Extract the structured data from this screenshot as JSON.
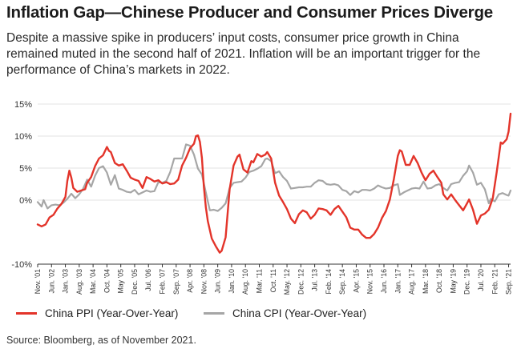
{
  "header": {
    "title": "Inflation Gap—Chinese Producer and Consumer Prices Diverge",
    "subtitle": "Despite a massive spike in producers’ input costs, consumer price growth in China remained muted in the second half of 2021. Inflation will be an important trigger for the performance of China’s markets in 2022."
  },
  "footer": {
    "source": "Source: Bloomberg, as of November 2021."
  },
  "colors": {
    "ppi": "#e3342a",
    "cpi": "#a6a6a6",
    "grid": "#e3e3e3",
    "axis": "#333333"
  },
  "chart_data": {
    "type": "line",
    "title": "",
    "xlabel": "",
    "ylabel": "",
    "ylim": [
      -10,
      15
    ],
    "xlim": [
      "Nov. '01",
      "Oct. '21"
    ],
    "grid": true,
    "legend_position": "bottom",
    "y_ticks": [
      "15%",
      "10%",
      "5%",
      "0%",
      "-10%"
    ],
    "x_ticks": [
      "Nov. '01",
      "Jun. '02",
      "Jan. '03",
      "Aug. '03",
      "Mar. '04",
      "Oct. '04",
      "May '05",
      "Dec. '05",
      "Jul. '06",
      "Feb. '07",
      "Sep. '07",
      "Apr. '08",
      "Nov. '08",
      "Jun. '09",
      "Jan. '10",
      "Aug. '10",
      "Mar. '11",
      "Oct. '11",
      "May. '12",
      "Dec. '12",
      "Jul. '13",
      "Feb. '14",
      "Sep. '14",
      "Apr. '15",
      "Nov. '15",
      "Jun. '16",
      "Jan. '17",
      "Aug. '17",
      "Mar. '18",
      "Oct. '18",
      "May '19",
      "Dec. '19",
      "Jul. '20",
      "Feb. '21",
      "Sep. '21"
    ],
    "series": [
      {
        "name": "China PPI (Year-Over-Year)",
        "color": "#e3342a",
        "points": [
          [
            "2001-11",
            -3.8
          ],
          [
            "2002-01",
            -4.1
          ],
          [
            "2002-03",
            -3.8
          ],
          [
            "2002-05",
            -2.7
          ],
          [
            "2002-07",
            -2.3
          ],
          [
            "2002-09",
            -1.3
          ],
          [
            "2002-11",
            -0.6
          ],
          [
            "2003-01",
            0.5
          ],
          [
            "2003-02",
            3.0
          ],
          [
            "2003-03",
            4.6
          ],
          [
            "2003-04",
            3.5
          ],
          [
            "2003-05",
            1.9
          ],
          [
            "2003-07",
            1.3
          ],
          [
            "2003-09",
            1.5
          ],
          [
            "2003-11",
            1.7
          ],
          [
            "2003-12",
            2.7
          ],
          [
            "2004-02",
            3.6
          ],
          [
            "2004-04",
            5.3
          ],
          [
            "2004-06",
            6.5
          ],
          [
            "2004-08",
            7.0
          ],
          [
            "2004-10",
            8.3
          ],
          [
            "2004-11",
            7.7
          ],
          [
            "2004-12",
            7.5
          ],
          [
            "2005-02",
            5.8
          ],
          [
            "2005-04",
            5.4
          ],
          [
            "2005-06",
            5.6
          ],
          [
            "2005-08",
            4.6
          ],
          [
            "2005-10",
            3.5
          ],
          [
            "2005-12",
            3.2
          ],
          [
            "2006-02",
            3.0
          ],
          [
            "2006-04",
            1.9
          ],
          [
            "2006-06",
            3.6
          ],
          [
            "2006-08",
            3.3
          ],
          [
            "2006-10",
            2.9
          ],
          [
            "2006-12",
            3.1
          ],
          [
            "2007-02",
            2.6
          ],
          [
            "2007-04",
            2.8
          ],
          [
            "2007-06",
            2.5
          ],
          [
            "2007-08",
            2.6
          ],
          [
            "2007-10",
            3.2
          ],
          [
            "2007-12",
            5.4
          ],
          [
            "2008-02",
            6.6
          ],
          [
            "2008-04",
            8.1
          ],
          [
            "2008-06",
            8.8
          ],
          [
            "2008-07",
            10.0
          ],
          [
            "2008-08",
            10.1
          ],
          [
            "2008-09",
            9.1
          ],
          [
            "2008-10",
            6.6
          ],
          [
            "2008-11",
            2.0
          ],
          [
            "2008-12",
            -1.1
          ],
          [
            "2009-01",
            -3.3
          ],
          [
            "2009-03",
            -6.0
          ],
          [
            "2009-05",
            -7.2
          ],
          [
            "2009-07",
            -8.2
          ],
          [
            "2009-08",
            -7.9
          ],
          [
            "2009-10",
            -5.8
          ],
          [
            "2009-12",
            1.7
          ],
          [
            "2010-02",
            5.4
          ],
          [
            "2010-04",
            6.8
          ],
          [
            "2010-05",
            7.1
          ],
          [
            "2010-07",
            4.8
          ],
          [
            "2010-09",
            4.3
          ],
          [
            "2010-11",
            6.1
          ],
          [
            "2010-12",
            5.9
          ],
          [
            "2011-02",
            7.2
          ],
          [
            "2011-04",
            6.8
          ],
          [
            "2011-06",
            7.1
          ],
          [
            "2011-07",
            7.5
          ],
          [
            "2011-09",
            6.5
          ],
          [
            "2011-11",
            2.7
          ],
          [
            "2012-01",
            0.7
          ],
          [
            "2012-03",
            -0.3
          ],
          [
            "2012-05",
            -1.4
          ],
          [
            "2012-07",
            -2.9
          ],
          [
            "2012-09",
            -3.6
          ],
          [
            "2012-11",
            -2.2
          ],
          [
            "2013-01",
            -1.6
          ],
          [
            "2013-03",
            -1.9
          ],
          [
            "2013-05",
            -2.9
          ],
          [
            "2013-07",
            -2.3
          ],
          [
            "2013-09",
            -1.3
          ],
          [
            "2013-11",
            -1.4
          ],
          [
            "2014-01",
            -1.6
          ],
          [
            "2014-03",
            -2.3
          ],
          [
            "2014-05",
            -1.4
          ],
          [
            "2014-07",
            -0.9
          ],
          [
            "2014-09",
            -1.8
          ],
          [
            "2014-11",
            -2.7
          ],
          [
            "2015-01",
            -4.3
          ],
          [
            "2015-03",
            -4.6
          ],
          [
            "2015-05",
            -4.6
          ],
          [
            "2015-07",
            -5.4
          ],
          [
            "2015-09",
            -5.9
          ],
          [
            "2015-11",
            -5.9
          ],
          [
            "2016-01",
            -5.3
          ],
          [
            "2016-03",
            -4.3
          ],
          [
            "2016-05",
            -2.8
          ],
          [
            "2016-07",
            -1.7
          ],
          [
            "2016-09",
            0.1
          ],
          [
            "2016-11",
            3.3
          ],
          [
            "2017-01",
            6.9
          ],
          [
            "2017-02",
            7.8
          ],
          [
            "2017-03",
            7.6
          ],
          [
            "2017-05",
            5.5
          ],
          [
            "2017-07",
            5.5
          ],
          [
            "2017-09",
            6.9
          ],
          [
            "2017-11",
            5.8
          ],
          [
            "2018-01",
            4.3
          ],
          [
            "2018-03",
            3.1
          ],
          [
            "2018-05",
            4.1
          ],
          [
            "2018-07",
            4.6
          ],
          [
            "2018-09",
            3.6
          ],
          [
            "2018-11",
            2.7
          ],
          [
            "2018-12",
            0.9
          ],
          [
            "2019-02",
            0.1
          ],
          [
            "2019-04",
            0.9
          ],
          [
            "2019-06",
            0.0
          ],
          [
            "2019-08",
            -0.8
          ],
          [
            "2019-10",
            -1.6
          ],
          [
            "2019-12",
            -0.5
          ],
          [
            "2020-01",
            0.1
          ],
          [
            "2020-03",
            -1.5
          ],
          [
            "2020-05",
            -3.7
          ],
          [
            "2020-07",
            -2.4
          ],
          [
            "2020-09",
            -2.1
          ],
          [
            "2020-11",
            -1.5
          ],
          [
            "2021-01",
            0.3
          ],
          [
            "2021-03",
            4.4
          ],
          [
            "2021-05",
            9.0
          ],
          [
            "2021-06",
            8.8
          ],
          [
            "2021-08",
            9.5
          ],
          [
            "2021-09",
            10.7
          ],
          [
            "2021-10",
            13.5
          ]
        ]
      },
      {
        "name": "China CPI (Year-Over-Year)",
        "color": "#a6a6a6",
        "points": [
          [
            "2001-11",
            -0.3
          ],
          [
            "2002-01",
            -1.0
          ],
          [
            "2002-02",
            0.0
          ],
          [
            "2002-04",
            -1.3
          ],
          [
            "2002-06",
            -0.8
          ],
          [
            "2002-08",
            -0.7
          ],
          [
            "2002-10",
            -0.8
          ],
          [
            "2002-12",
            -0.4
          ],
          [
            "2003-02",
            0.2
          ],
          [
            "2003-04",
            1.0
          ],
          [
            "2003-06",
            0.3
          ],
          [
            "2003-08",
            0.9
          ],
          [
            "2003-10",
            1.8
          ],
          [
            "2003-12",
            3.2
          ],
          [
            "2004-02",
            2.1
          ],
          [
            "2004-04",
            3.8
          ],
          [
            "2004-06",
            5.0
          ],
          [
            "2004-08",
            5.3
          ],
          [
            "2004-10",
            4.3
          ],
          [
            "2004-12",
            2.4
          ],
          [
            "2005-02",
            3.9
          ],
          [
            "2005-04",
            1.8
          ],
          [
            "2005-06",
            1.6
          ],
          [
            "2005-08",
            1.3
          ],
          [
            "2005-10",
            1.2
          ],
          [
            "2005-12",
            1.6
          ],
          [
            "2006-02",
            0.9
          ],
          [
            "2006-04",
            1.2
          ],
          [
            "2006-06",
            1.5
          ],
          [
            "2006-08",
            1.3
          ],
          [
            "2006-10",
            1.4
          ],
          [
            "2006-12",
            2.8
          ],
          [
            "2007-02",
            2.7
          ],
          [
            "2007-04",
            3.0
          ],
          [
            "2007-06",
            4.4
          ],
          [
            "2007-08",
            6.5
          ],
          [
            "2007-10",
            6.5
          ],
          [
            "2007-12",
            6.5
          ],
          [
            "2008-02",
            8.7
          ],
          [
            "2008-04",
            8.5
          ],
          [
            "2008-06",
            7.1
          ],
          [
            "2008-08",
            4.9
          ],
          [
            "2008-10",
            4.0
          ],
          [
            "2008-12",
            1.2
          ],
          [
            "2009-02",
            -1.6
          ],
          [
            "2009-04",
            -1.5
          ],
          [
            "2009-06",
            -1.7
          ],
          [
            "2009-08",
            -1.2
          ],
          [
            "2009-10",
            -0.5
          ],
          [
            "2009-12",
            1.9
          ],
          [
            "2010-02",
            2.7
          ],
          [
            "2010-04",
            2.8
          ],
          [
            "2010-06",
            2.9
          ],
          [
            "2010-08",
            3.5
          ],
          [
            "2010-10",
            4.4
          ],
          [
            "2010-12",
            4.6
          ],
          [
            "2011-02",
            4.9
          ],
          [
            "2011-04",
            5.3
          ],
          [
            "2011-06",
            6.4
          ],
          [
            "2011-07",
            6.5
          ],
          [
            "2011-09",
            6.1
          ],
          [
            "2011-11",
            4.2
          ],
          [
            "2012-01",
            4.5
          ],
          [
            "2012-03",
            3.6
          ],
          [
            "2012-05",
            3.0
          ],
          [
            "2012-07",
            1.8
          ],
          [
            "2012-09",
            1.9
          ],
          [
            "2012-11",
            2.0
          ],
          [
            "2013-01",
            2.0
          ],
          [
            "2013-03",
            2.1
          ],
          [
            "2013-05",
            2.1
          ],
          [
            "2013-07",
            2.7
          ],
          [
            "2013-09",
            3.1
          ],
          [
            "2013-11",
            3.0
          ],
          [
            "2014-01",
            2.5
          ],
          [
            "2014-03",
            2.4
          ],
          [
            "2014-05",
            2.5
          ],
          [
            "2014-07",
            2.3
          ],
          [
            "2014-09",
            1.6
          ],
          [
            "2014-11",
            1.4
          ],
          [
            "2015-01",
            0.8
          ],
          [
            "2015-03",
            1.4
          ],
          [
            "2015-05",
            1.2
          ],
          [
            "2015-07",
            1.6
          ],
          [
            "2015-09",
            1.6
          ],
          [
            "2015-11",
            1.5
          ],
          [
            "2016-01",
            1.8
          ],
          [
            "2016-03",
            2.3
          ],
          [
            "2016-05",
            2.0
          ],
          [
            "2016-07",
            1.8
          ],
          [
            "2016-09",
            1.9
          ],
          [
            "2016-11",
            2.3
          ],
          [
            "2017-01",
            2.5
          ],
          [
            "2017-02",
            0.8
          ],
          [
            "2017-04",
            1.2
          ],
          [
            "2017-06",
            1.5
          ],
          [
            "2017-08",
            1.8
          ],
          [
            "2017-10",
            1.9
          ],
          [
            "2017-12",
            1.8
          ],
          [
            "2018-02",
            2.9
          ],
          [
            "2018-04",
            1.8
          ],
          [
            "2018-06",
            1.9
          ],
          [
            "2018-08",
            2.3
          ],
          [
            "2018-10",
            2.5
          ],
          [
            "2018-12",
            1.9
          ],
          [
            "2019-02",
            1.5
          ],
          [
            "2019-04",
            2.5
          ],
          [
            "2019-06",
            2.7
          ],
          [
            "2019-08",
            2.8
          ],
          [
            "2019-10",
            3.8
          ],
          [
            "2019-12",
            4.5
          ],
          [
            "2020-01",
            5.4
          ],
          [
            "2020-03",
            4.3
          ],
          [
            "2020-05",
            2.4
          ],
          [
            "2020-07",
            2.7
          ],
          [
            "2020-09",
            1.7
          ],
          [
            "2020-11",
            -0.5
          ],
          [
            "2020-12",
            0.2
          ],
          [
            "2021-02",
            -0.2
          ],
          [
            "2021-04",
            0.9
          ],
          [
            "2021-06",
            1.1
          ],
          [
            "2021-08",
            0.8
          ],
          [
            "2021-09",
            0.7
          ],
          [
            "2021-10",
            1.5
          ]
        ]
      }
    ]
  }
}
